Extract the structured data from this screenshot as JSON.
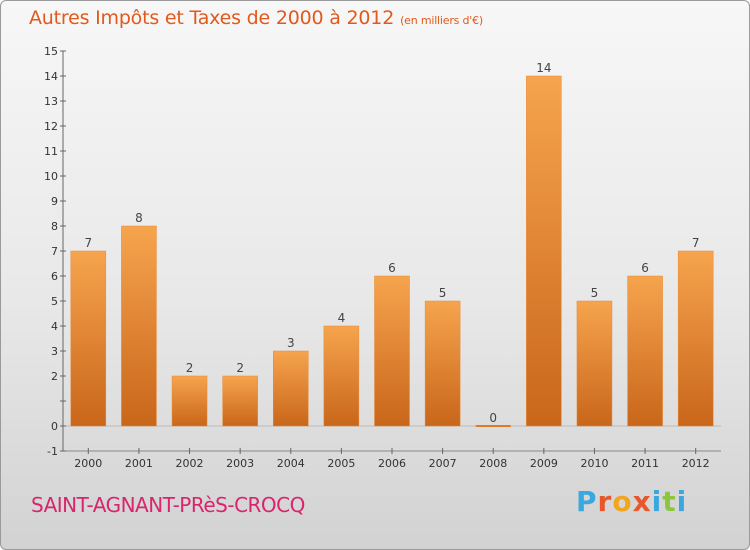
{
  "page": {
    "title": "Autres Impôts et Taxes de 2000 à 2012",
    "subtitle": "(en milliers d'€)",
    "commune": "SAINT-AGNANT-PRèS-CROCQ",
    "brand": "Proxiti"
  },
  "colors": {
    "title": "#e05a1b",
    "commune": "#d8256d",
    "bar_light": "#f6a44e",
    "bar_dark": "#c9661a",
    "brand_letters": [
      "#3aa7e0",
      "#e8562a",
      "#f2a51f",
      "#e8562a",
      "#3aa7e0",
      "#8cc63f",
      "#3aa7e0"
    ]
  },
  "chart_data": {
    "type": "bar",
    "categories": [
      "2000",
      "2001",
      "2002",
      "2003",
      "2004",
      "2005",
      "2006",
      "2007",
      "2008",
      "2009",
      "2010",
      "2011",
      "2012"
    ],
    "values": [
      7,
      8,
      2,
      2,
      3,
      4,
      6,
      5,
      0,
      14,
      5,
      6,
      7
    ],
    "data_labels": [
      "7",
      "8",
      "2",
      "2",
      "3",
      "4",
      "6",
      "5",
      "0",
      "14",
      "5",
      "6",
      "7"
    ],
    "title": "Autres Impôts et Taxes de 2000 à 2012",
    "xlabel": "",
    "ylabel": "",
    "ylim": [
      -1,
      15
    ],
    "y_ticks": [
      -1,
      0,
      1,
      2,
      3,
      4,
      5,
      6,
      7,
      8,
      9,
      10,
      11,
      12,
      13,
      14,
      15
    ],
    "y_tick_labels": [
      "-1",
      "0",
      "",
      "2",
      "3",
      "4",
      "5",
      "6",
      "7",
      "8",
      "9",
      "10",
      "11",
      "12",
      "13",
      "14",
      "15"
    ],
    "grid": false,
    "legend": "none"
  }
}
